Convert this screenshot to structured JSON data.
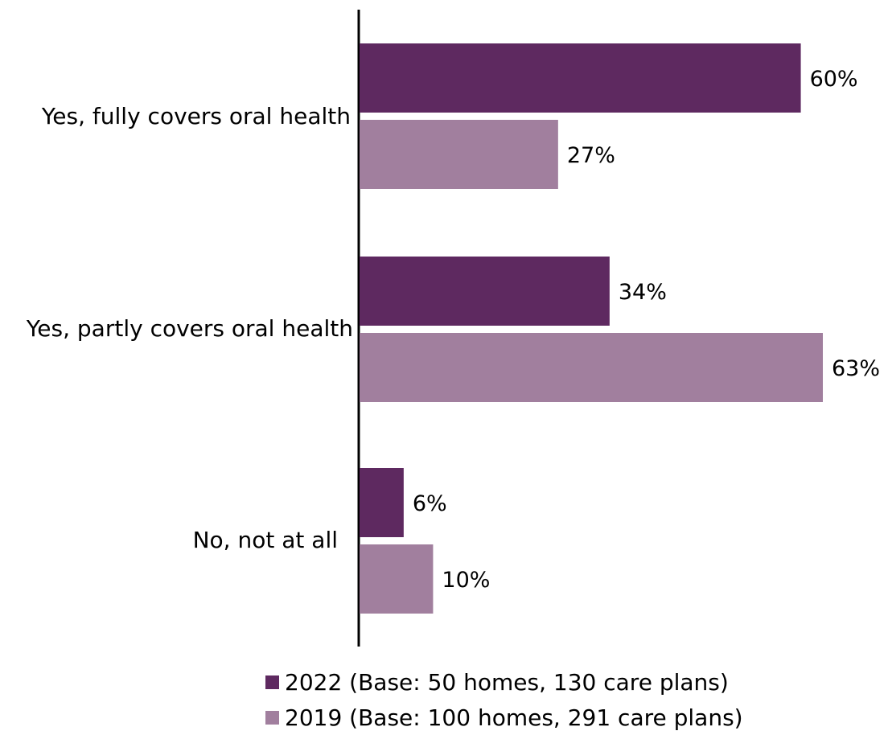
{
  "chart_data": {
    "type": "bar",
    "orientation": "horizontal",
    "categories": [
      "Yes, fully covers oral health",
      "Yes, partly covers oral health",
      "No, not at all"
    ],
    "series": [
      {
        "name": "2022 (Base: 50 homes, 130 care plans)",
        "color": "#5e2960",
        "values": [
          60,
          34,
          6
        ],
        "labels": [
          "60%",
          "34%",
          "6%"
        ]
      },
      {
        "name": "2019 (Base: 100 homes, 291 care plans)",
        "color": "#a17f9e",
        "values": [
          27,
          63,
          10
        ],
        "labels": [
          "27%",
          "63%",
          "10%"
        ]
      }
    ],
    "xlim": [
      0,
      63
    ],
    "grid": false,
    "legend_position": "bottom"
  }
}
